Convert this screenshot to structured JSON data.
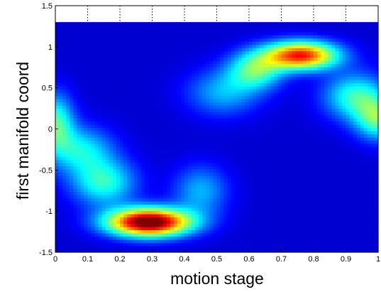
{
  "chart_data": {
    "type": "heatmap",
    "title": "",
    "xlabel": "motion stage",
    "ylabel": "first manifold coord",
    "xlim": [
      0,
      1
    ],
    "ylim": [
      -1.5,
      1.5
    ],
    "data_ylim": [
      -1.5,
      1.3
    ],
    "xticks": [
      "0",
      "0.1",
      "0.2",
      "0.3",
      "0.4",
      "0.5",
      "0.6",
      "0.7",
      "0.8",
      "0.9",
      "1"
    ],
    "yticks": [
      "-1.5",
      "-1",
      "-0.5",
      "0",
      "0.5",
      "1",
      "1.5"
    ],
    "grid": "dotted lines in the empty band above the data",
    "colormap": "jet",
    "colors": {
      "background": "#00008f",
      "axis": "#000000",
      "grid": "#000000"
    },
    "peaks": [
      {
        "x": 0.29,
        "y": -1.13,
        "intensity": 1.0,
        "spread_x": 0.09,
        "spread_y": 0.12
      },
      {
        "x": 0.76,
        "y": 0.9,
        "intensity": 0.78,
        "spread_x": 0.08,
        "spread_y": 0.12
      },
      {
        "x": 0.0,
        "y": 0.08,
        "intensity": 0.36,
        "spread_x": 0.04,
        "spread_y": 0.25
      },
      {
        "x": 0.93,
        "y": 0.4,
        "intensity": 0.34,
        "spread_x": 0.07,
        "spread_y": 0.2
      },
      {
        "x": 1.0,
        "y": 0.12,
        "intensity": 0.36,
        "spread_x": 0.05,
        "spread_y": 0.18
      },
      {
        "x": 0.15,
        "y": -0.65,
        "intensity": 0.33,
        "spread_x": 0.07,
        "spread_y": 0.2
      },
      {
        "x": 0.08,
        "y": -0.25,
        "intensity": 0.28,
        "spread_x": 0.07,
        "spread_y": 0.2
      },
      {
        "x": 0.52,
        "y": 0.45,
        "intensity": 0.22,
        "spread_x": 0.08,
        "spread_y": 0.2
      },
      {
        "x": 0.62,
        "y": 0.72,
        "intensity": 0.36,
        "spread_x": 0.06,
        "spread_y": 0.16
      },
      {
        "x": 0.45,
        "y": -0.75,
        "intensity": 0.22,
        "spread_x": 0.06,
        "spread_y": 0.22
      }
    ]
  }
}
